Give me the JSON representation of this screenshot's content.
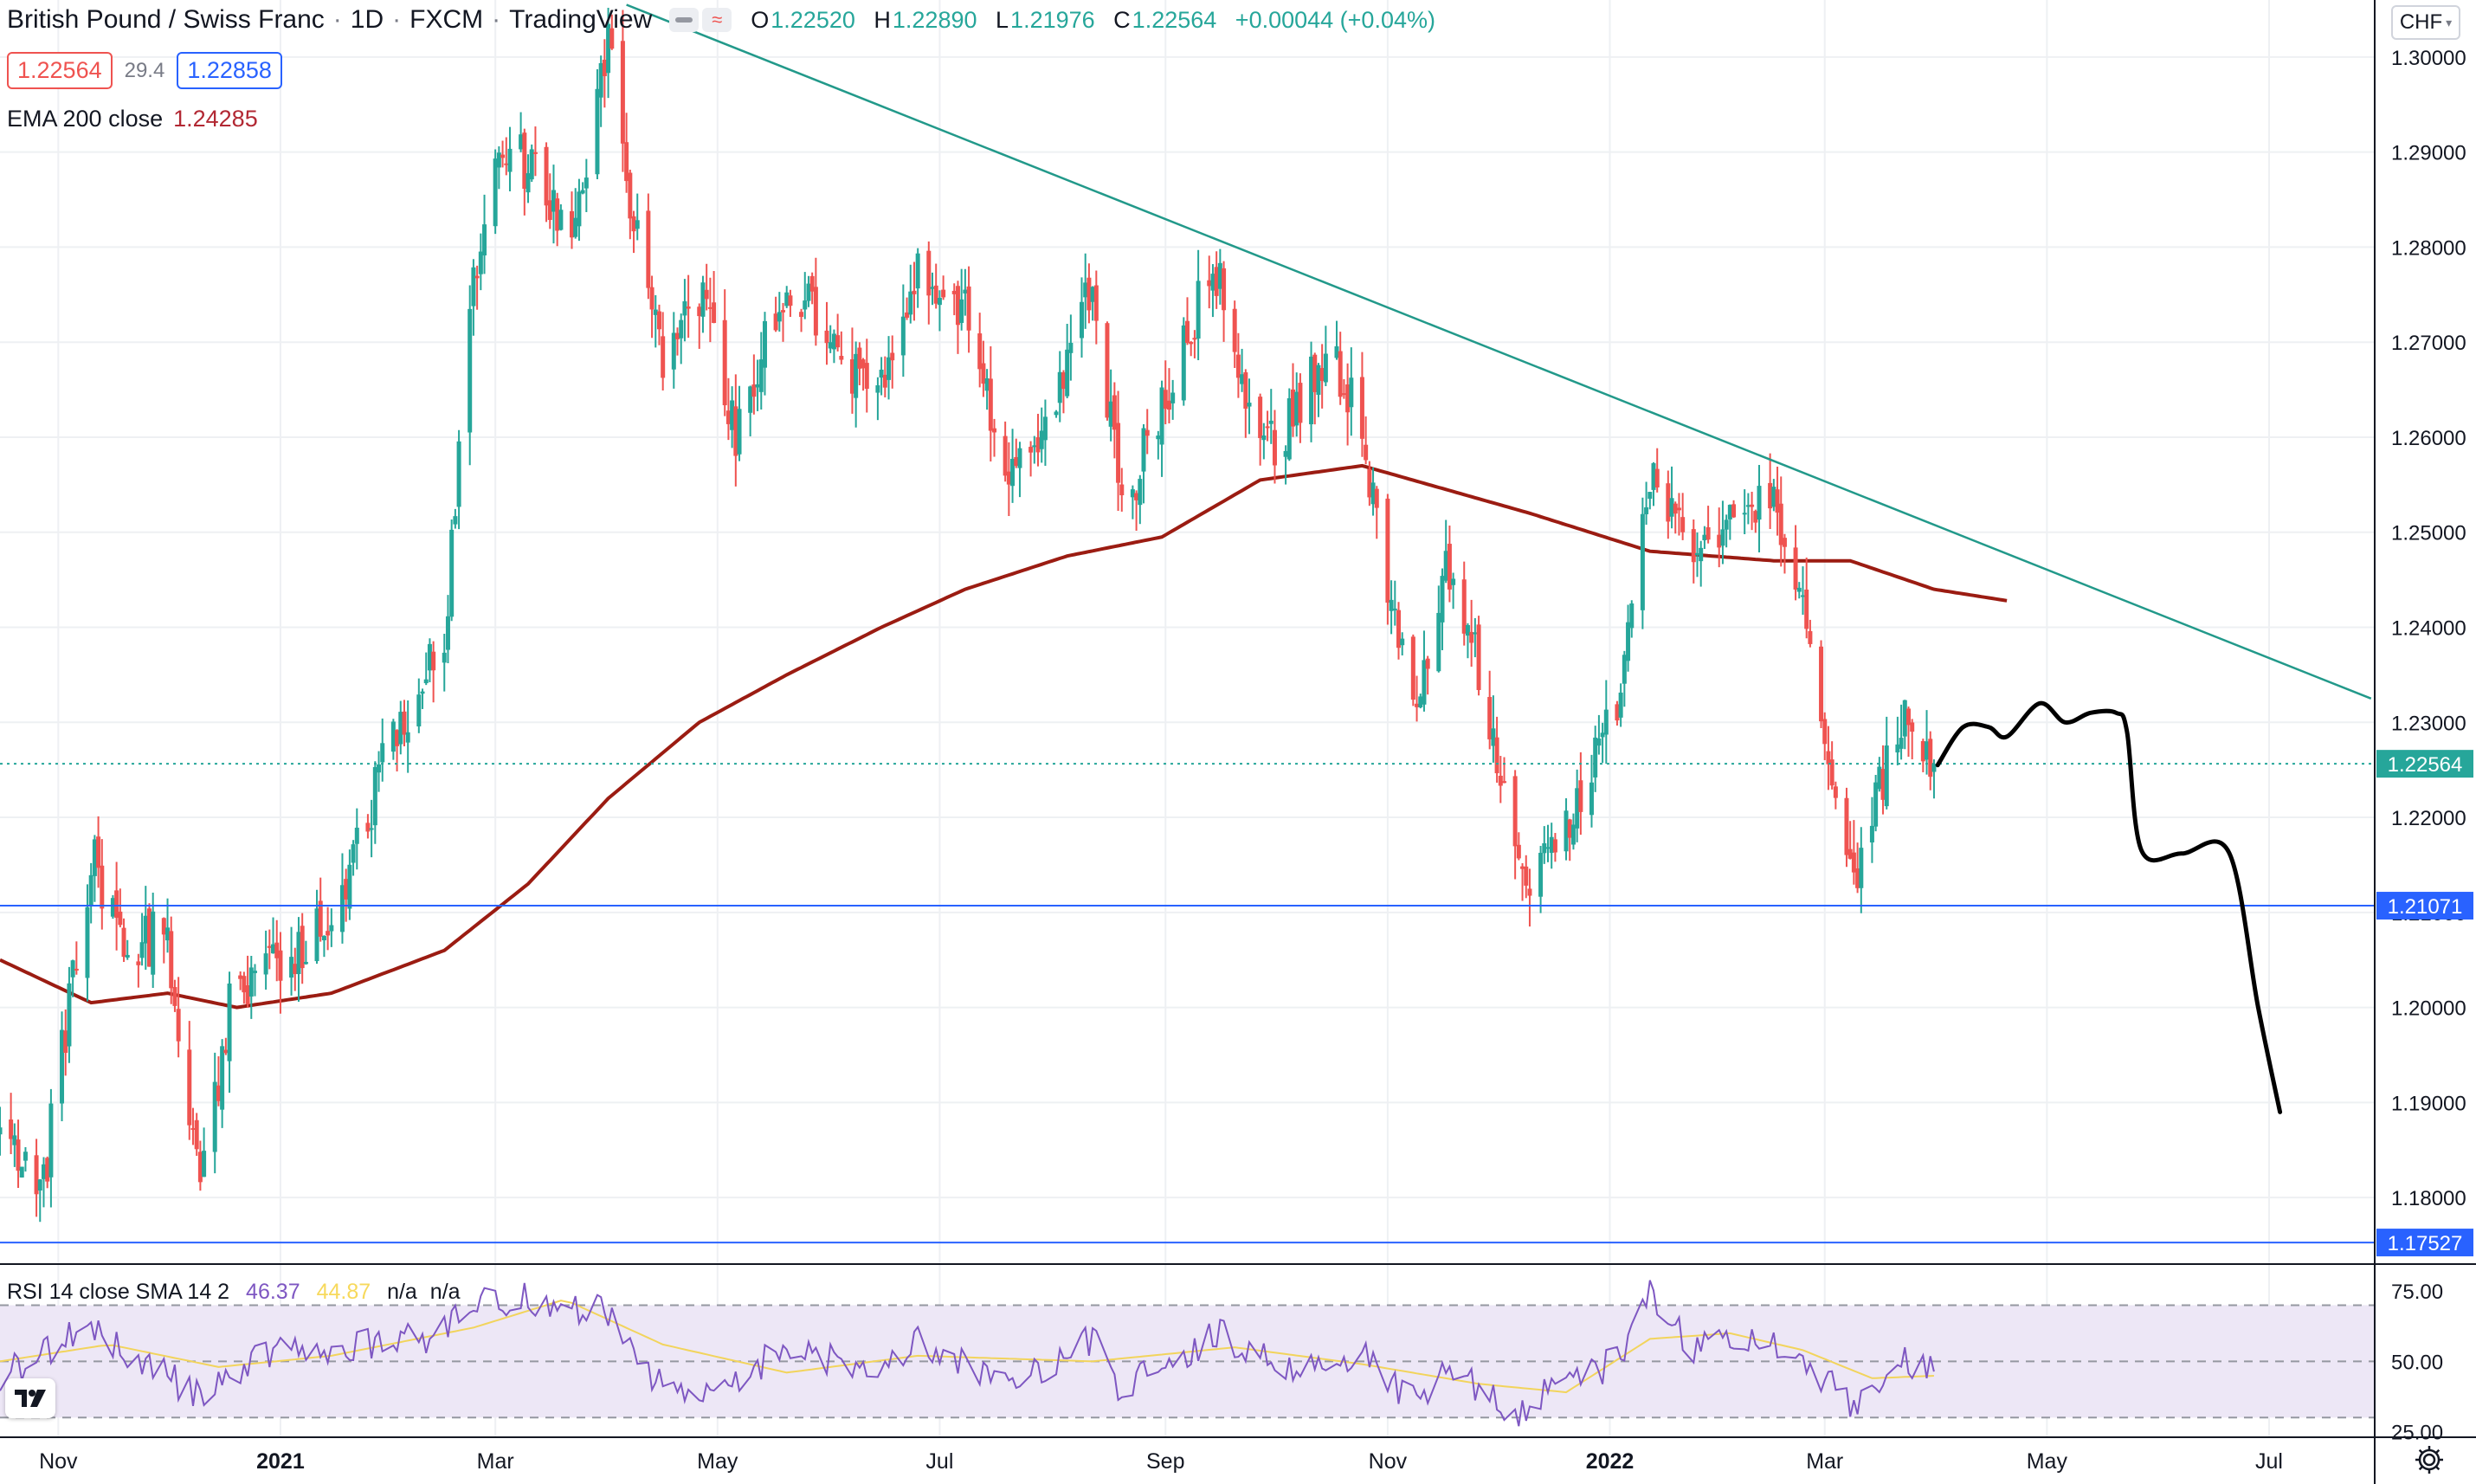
{
  "legend": {
    "symbol": "British Pound / Swiss Franc",
    "interval": "1D",
    "exchange": "FXCM",
    "source": "TradingView",
    "ohlc": {
      "o_key": "O",
      "o": "1.22520",
      "h_key": "H",
      "h": "1.22890",
      "l_key": "L",
      "l": "1.21976",
      "c_key": "C",
      "c": "1.22564",
      "change": "+0.00044 (+0.04%)"
    },
    "sell_price": "1.22564",
    "spread": "29.4",
    "buy_price": "1.22858"
  },
  "ema": {
    "label": "EMA 200 close",
    "value": "1.24285"
  },
  "rsi_legend": {
    "label": "RSI 14 close SMA 14 2",
    "rsi_value": "46.37",
    "sma_value": "44.87",
    "na1": "n/a",
    "na2": "n/a"
  },
  "currency": "CHF",
  "colors": {
    "up": "#26a69a",
    "down": "#ef5350",
    "ema": "#9b1c12",
    "trendline": "#22998a",
    "hline": "#2962ff",
    "projection": "#000000",
    "rsi": "#7e57c2",
    "rsi_sma": "#f2d45c",
    "rsi_band": "#ede7f6"
  },
  "icons": {
    "indicators": "eye-hide-icon",
    "compare": "wave-icon",
    "logo": "tradingview-logo-icon",
    "settings": "gear-icon"
  },
  "chart_data": [
    {
      "type": "candlestick",
      "title": "British Pound / Swiss Franc · 1D · FXCM",
      "x_start": "2020-10-16",
      "bars_per_day": "weekdays",
      "x_ticks": [
        "Nov",
        "2021",
        "Mar",
        "May",
        "Jul",
        "Sep",
        "Nov",
        "2022",
        "Mar",
        "May",
        "Jul"
      ],
      "ylim": [
        1.173,
        1.306
      ],
      "y_ticks": [
        1.18,
        1.19,
        1.2,
        1.21,
        1.22,
        1.23,
        1.24,
        1.25,
        1.26,
        1.27,
        1.28,
        1.29,
        1.3
      ],
      "y_tick_labels": [
        "1.18000",
        "1.19000",
        "1.20000",
        "1.21000",
        "1.22000",
        "1.23000",
        "1.24000",
        "1.25000",
        "1.26000",
        "1.27000",
        "1.28000",
        "1.29000",
        "1.30000"
      ],
      "close_anchors": [
        [
          "2020-10-16",
          1.186
        ],
        [
          "2020-10-28",
          1.182
        ],
        [
          "2020-11-10",
          1.216
        ],
        [
          "2020-11-20",
          1.206
        ],
        [
          "2020-12-01",
          1.208
        ],
        [
          "2020-12-10",
          1.18
        ],
        [
          "2020-12-18",
          1.2
        ],
        [
          "2020-12-30",
          1.204
        ],
        [
          "2021-01-15",
          1.21
        ],
        [
          "2021-02-01",
          1.228
        ],
        [
          "2021-02-15",
          1.239
        ],
        [
          "2021-02-23",
          1.275
        ],
        [
          "2021-03-01",
          1.289
        ],
        [
          "2021-03-10",
          1.289
        ],
        [
          "2021-03-22",
          1.282
        ],
        [
          "2021-04-01",
          1.301
        ],
        [
          "2021-04-06",
          1.287
        ],
        [
          "2021-04-16",
          1.268
        ],
        [
          "2021-04-26",
          1.275
        ],
        [
          "2021-05-06",
          1.261
        ],
        [
          "2021-05-20",
          1.276
        ],
        [
          "2021-06-04",
          1.269
        ],
        [
          "2021-06-14",
          1.263
        ],
        [
          "2021-06-25",
          1.277
        ],
        [
          "2021-07-08",
          1.274
        ],
        [
          "2021-07-20",
          1.256
        ],
        [
          "2021-07-30",
          1.262
        ],
        [
          "2021-08-12",
          1.276
        ],
        [
          "2021-08-20",
          1.252
        ],
        [
          "2021-08-31",
          1.263
        ],
        [
          "2021-09-10",
          1.274
        ],
        [
          "2021-09-15",
          1.277
        ],
        [
          "2021-09-27",
          1.257
        ],
        [
          "2021-10-05",
          1.262
        ],
        [
          "2021-10-15",
          1.269
        ],
        [
          "2021-10-25",
          1.262
        ],
        [
          "2021-11-01",
          1.241
        ],
        [
          "2021-11-10",
          1.232
        ],
        [
          "2021-11-17",
          1.248
        ],
        [
          "2021-11-26",
          1.236
        ],
        [
          "2021-12-06",
          1.218
        ],
        [
          "2021-12-10",
          1.212
        ],
        [
          "2021-12-20",
          1.219
        ],
        [
          "2022-01-03",
          1.233
        ],
        [
          "2022-01-12",
          1.255
        ],
        [
          "2022-01-24",
          1.249
        ],
        [
          "2022-02-03",
          1.252
        ],
        [
          "2022-02-15",
          1.252
        ],
        [
          "2022-02-23",
          1.243
        ],
        [
          "2022-03-02",
          1.226
        ],
        [
          "2022-03-08",
          1.213
        ],
        [
          "2022-03-14",
          1.22
        ],
        [
          "2022-03-23",
          1.231
        ],
        [
          "2022-03-31",
          1.2256
        ]
      ],
      "ema_200_anchors": [
        [
          "2020-10-16",
          1.205
        ],
        [
          "2020-11-10",
          1.2005
        ],
        [
          "2020-12-01",
          1.2015
        ],
        [
          "2020-12-20",
          1.2
        ],
        [
          "2021-01-15",
          1.2015
        ],
        [
          "2021-02-15",
          1.206
        ],
        [
          "2021-03-10",
          1.213
        ],
        [
          "2021-04-01",
          1.222
        ],
        [
          "2021-04-26",
          1.23
        ],
        [
          "2021-05-20",
          1.235
        ],
        [
          "2021-06-15",
          1.24
        ],
        [
          "2021-07-08",
          1.244
        ],
        [
          "2021-08-05",
          1.2475
        ],
        [
          "2021-08-31",
          1.2495
        ],
        [
          "2021-09-27",
          1.2555
        ],
        [
          "2021-10-25",
          1.257
        ],
        [
          "2021-11-17",
          1.2545
        ],
        [
          "2021-12-10",
          1.252
        ],
        [
          "2022-01-12",
          1.248
        ],
        [
          "2022-02-15",
          1.247
        ],
        [
          "2022-03-08",
          1.247
        ],
        [
          "2022-03-31",
          1.244
        ],
        [
          "2022-04-20",
          1.2428
        ]
      ],
      "horizontal_lines": [
        {
          "price": 1.21071,
          "label": "1.21071"
        },
        {
          "price": 1.17527,
          "label": "1.17527"
        }
      ],
      "last_price": {
        "value": 1.22564,
        "label": "1.22564"
      },
      "trendline": {
        "from": [
          "2021-04-06",
          1.3055
        ],
        "to": [
          "2022-07-29",
          1.2325
        ]
      },
      "projection_path": [
        [
          "2022-04-01",
          1.2255
        ],
        [
          "2022-04-08",
          1.2295
        ],
        [
          "2022-04-15",
          1.2295
        ],
        [
          "2022-04-20",
          1.2285
        ],
        [
          "2022-04-29",
          1.232
        ],
        [
          "2022-05-06",
          1.23
        ],
        [
          "2022-05-13",
          1.231
        ],
        [
          "2022-05-20",
          1.231
        ],
        [
          "2022-05-23",
          1.229
        ],
        [
          "2022-05-27",
          1.2165
        ],
        [
          "2022-06-07",
          1.2162
        ],
        [
          "2022-06-20",
          1.2163
        ],
        [
          "2022-06-28",
          1.2
        ],
        [
          "2022-07-04",
          1.189
        ]
      ]
    },
    {
      "type": "line",
      "title": "RSI 14 close SMA 14 2",
      "ylim": [
        23,
        84
      ],
      "y_ticks": [
        25,
        50,
        75
      ],
      "y_tick_labels": [
        "25.00",
        "50.00",
        "75.00"
      ],
      "band": [
        30,
        70
      ],
      "rsi_anchors": [
        [
          "2020-10-16",
          45
        ],
        [
          "2020-11-10",
          62
        ],
        [
          "2020-11-20",
          52
        ],
        [
          "2020-12-10",
          38
        ],
        [
          "2020-12-30",
          54
        ],
        [
          "2021-01-15",
          55
        ],
        [
          "2021-02-10",
          58
        ],
        [
          "2021-02-23",
          72
        ],
        [
          "2021-03-10",
          72
        ],
        [
          "2021-04-01",
          68
        ],
        [
          "2021-04-16",
          40
        ],
        [
          "2021-05-06",
          43
        ],
        [
          "2021-05-20",
          55
        ],
        [
          "2021-06-14",
          46
        ],
        [
          "2021-06-25",
          58
        ],
        [
          "2021-07-20",
          42
        ],
        [
          "2021-08-12",
          58
        ],
        [
          "2021-08-20",
          40
        ],
        [
          "2021-09-15",
          60
        ],
        [
          "2021-10-05",
          48
        ],
        [
          "2021-10-25",
          52
        ],
        [
          "2021-11-10",
          33
        ],
        [
          "2021-11-17",
          48
        ],
        [
          "2021-12-06",
          32
        ],
        [
          "2021-12-20",
          42
        ],
        [
          "2022-01-03",
          50
        ],
        [
          "2022-01-12",
          73
        ],
        [
          "2022-01-24",
          55
        ],
        [
          "2022-02-03",
          59
        ],
        [
          "2022-02-15",
          57
        ],
        [
          "2022-02-23",
          52
        ],
        [
          "2022-03-08",
          34
        ],
        [
          "2022-03-23",
          51
        ],
        [
          "2022-03-31",
          46.37
        ]
      ],
      "sma_anchors": [
        [
          "2020-10-16",
          50
        ],
        [
          "2020-11-15",
          56
        ],
        [
          "2020-12-15",
          48
        ],
        [
          "2021-01-15",
          52
        ],
        [
          "2021-02-23",
          62
        ],
        [
          "2021-03-20",
          72
        ],
        [
          "2021-04-16",
          56
        ],
        [
          "2021-05-20",
          46
        ],
        [
          "2021-06-25",
          52
        ],
        [
          "2021-08-12",
          50
        ],
        [
          "2021-09-20",
          55
        ],
        [
          "2021-10-25",
          49
        ],
        [
          "2021-11-26",
          42
        ],
        [
          "2021-12-20",
          39
        ],
        [
          "2022-01-12",
          58
        ],
        [
          "2022-02-03",
          60
        ],
        [
          "2022-02-23",
          54
        ],
        [
          "2022-03-14",
          44
        ],
        [
          "2022-03-31",
          44.87
        ]
      ]
    }
  ]
}
